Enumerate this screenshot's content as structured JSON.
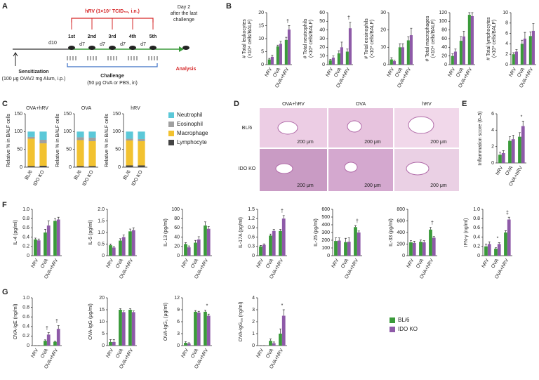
{
  "panels": [
    "A",
    "B",
    "C",
    "D",
    "E",
    "F",
    "G"
  ],
  "diagram": {
    "hrv": "hRV (1×10⁷ TCID₅₀, i.n.)",
    "day2": [
      "Day 2",
      "after the last",
      "challenge"
    ],
    "d10": "d10",
    "doses": [
      "1st",
      "2nd",
      "3rd",
      "4th",
      "5th"
    ],
    "intervals": [
      "d7",
      "d7",
      "d7",
      "d7"
    ],
    "sensitization": "Sensitization",
    "sensitization_detail": "(100 μg OVA/2 mg Alum, i.p.)",
    "challenge": "Challenge",
    "challenge_detail": "(50 μg OVA or PBS, in)",
    "analysis": "Analysis"
  },
  "histology": {
    "columns": [
      "OVA+hRV",
      "OVA",
      "hRV"
    ],
    "rows": [
      "BL/6",
      "IDO KO"
    ],
    "scale_bars": [
      "200 μm",
      "200 μm",
      "200 μm",
      "200 μm",
      "200 μm",
      "200 μm"
    ]
  },
  "chart_data": [
    {
      "type": "bar",
      "ylabel": [
        "# Total leukocytes",
        "(×10⁴ cells/BALF)"
      ],
      "categories": [
        "hRV",
        "OVA",
        "OVA+hRV"
      ],
      "series": [
        {
          "color": "#3a9a3a",
          "values": [
            2,
            7,
            9.5
          ],
          "errors": [
            0.4,
            0.5,
            1
          ]
        },
        {
          "color": "#8e5aa8",
          "values": [
            3,
            8,
            13.5
          ],
          "errors": [
            0.7,
            1,
            1.5
          ]
        }
      ],
      "ylim": [
        0,
        20
      ],
      "yticks": [
        0,
        5,
        10,
        15,
        20
      ],
      "annotations": [
        {
          "category": "OVA+hRV",
          "text": "†"
        }
      ]
    },
    {
      "type": "bar",
      "ylabel": [
        "# Total neutrophils",
        "(×10³ cells/BALF)"
      ],
      "categories": [
        "hRV",
        "OVA",
        "OVA+hRV"
      ],
      "series": [
        {
          "color": "#3a9a3a",
          "values": [
            5,
            13,
            15
          ],
          "errors": [
            1,
            3,
            3
          ]
        },
        {
          "color": "#8e5aa8",
          "values": [
            8,
            20,
            42
          ],
          "errors": [
            2,
            6,
            7
          ]
        }
      ],
      "ylim": [
        0,
        60
      ],
      "yticks": [
        0,
        10,
        20,
        30,
        40,
        50,
        60
      ],
      "annotations": [
        {
          "category": "OVA+hRV",
          "text": "†"
        }
      ]
    },
    {
      "type": "bar",
      "ylabel": [
        "# Total eosinophils",
        "(×10³ cells/BALF)"
      ],
      "categories": [
        "hRV",
        "OVA",
        "OVA+hRV"
      ],
      "series": [
        {
          "color": "#3a9a3a",
          "values": [
            3,
            10,
            14
          ],
          "errors": [
            1,
            2,
            2
          ]
        },
        {
          "color": "#8e5aa8",
          "values": [
            2,
            10,
            17
          ],
          "errors": [
            0.5,
            2,
            4
          ]
        }
      ],
      "ylim": [
        0,
        30
      ],
      "yticks": [
        0,
        10,
        20,
        30
      ],
      "annotations": []
    },
    {
      "type": "bar",
      "ylabel": [
        "# Total macrophages",
        "(×10⁴ cells/BALF)"
      ],
      "categories": [
        "hRV",
        "OVA",
        "OVA+hRV"
      ],
      "series": [
        {
          "color": "#3a9a3a",
          "values": [
            20,
            55,
            115
          ],
          "errors": [
            5,
            10,
            5
          ]
        },
        {
          "color": "#8e5aa8",
          "values": [
            30,
            65,
            112
          ],
          "errors": [
            6,
            12,
            8
          ]
        }
      ],
      "ylim": [
        0,
        120
      ],
      "yticks": [
        0,
        20,
        40,
        60,
        80,
        100,
        120
      ],
      "annotations": []
    },
    {
      "type": "bar",
      "ylabel": [
        "# Total lymphocytes",
        "(×10³ cells/BALF)"
      ],
      "categories": [
        "hRV",
        "OVA",
        "OVA+hRV"
      ],
      "series": [
        {
          "color": "#3a9a3a",
          "values": [
            2,
            4,
            5.5
          ],
          "errors": [
            0.3,
            0.7,
            0.8
          ]
        },
        {
          "color": "#8e5aa8",
          "values": [
            2.5,
            5,
            6.5
          ],
          "errors": [
            0.4,
            1.2,
            1.4
          ]
        }
      ],
      "ylim": [
        0,
        10
      ],
      "yticks": [
        0,
        2,
        4,
        6,
        8,
        10
      ],
      "annotations": []
    },
    {
      "type": "stacked",
      "title": "OVA+hRV",
      "ylabel": [
        "Relative % in BALF cells"
      ],
      "categories": [
        "BL/6",
        "IDO KO"
      ],
      "series": [
        {
          "name": "Lymphocyte",
          "color": "#444444",
          "values": [
            3,
            4
          ]
        },
        {
          "name": "Macrophage",
          "color": "#f2c230",
          "values": [
            77,
            63
          ]
        },
        {
          "name": "Eosinophil",
          "color": "#a0a0a0",
          "values": [
            5,
            10
          ]
        },
        {
          "name": "Neutrophil",
          "color": "#5bc8d8",
          "values": [
            15,
            23
          ]
        }
      ],
      "ylim": [
        0,
        150
      ],
      "yticks": [
        0,
        50,
        100,
        150
      ]
    },
    {
      "type": "stacked",
      "title": "OVA",
      "ylabel": [
        "Relative % in BALF cells"
      ],
      "categories": [
        "BL/6",
        "IDO KO"
      ],
      "series": [
        {
          "color": "#444444",
          "values": [
            3,
            3
          ]
        },
        {
          "color": "#f2c230",
          "values": [
            73,
            70
          ]
        },
        {
          "color": "#a0a0a0",
          "values": [
            8,
            10
          ]
        },
        {
          "color": "#5bc8d8",
          "values": [
            16,
            17
          ]
        }
      ],
      "ylim": [
        0,
        150
      ],
      "yticks": [
        0,
        50,
        100,
        150
      ]
    },
    {
      "type": "stacked",
      "title": "hRV",
      "ylabel": [
        "Relative % in BALF cells"
      ],
      "categories": [
        "BL/6",
        "IDO KO"
      ],
      "series": [
        {
          "color": "#444444",
          "values": [
            5,
            5
          ]
        },
        {
          "color": "#f2c230",
          "values": [
            70,
            68
          ]
        },
        {
          "color": "#a0a0a0",
          "values": [
            5,
            6
          ]
        },
        {
          "color": "#5bc8d8",
          "values": [
            20,
            21
          ]
        }
      ],
      "ylim": [
        0,
        150
      ],
      "yticks": [
        0,
        50,
        100,
        150
      ]
    },
    {
      "type": "bar",
      "ylabel": [
        "Inflammation score (0–5)"
      ],
      "categories": [
        "hRV",
        "OVA",
        "OVA+hRV"
      ],
      "series": [
        {
          "color": "#3a9a3a",
          "values": [
            1,
            2.7,
            3.2
          ],
          "errors": [
            0.3,
            0.5,
            0.5
          ]
        },
        {
          "color": "#8e5aa8",
          "values": [
            1.2,
            2.9,
            4.5
          ],
          "errors": [
            0.3,
            0.5,
            0.6
          ]
        }
      ],
      "ylim": [
        0,
        6
      ],
      "yticks": [
        0,
        2,
        4,
        6
      ],
      "annotations": [
        {
          "category": "OVA+hRV",
          "text": "*"
        }
      ]
    },
    {
      "type": "bar",
      "ylabel": [
        "IL-4 (pg/ml)"
      ],
      "categories": [
        "hRV",
        "OVA",
        "OVA+hRV"
      ],
      "series": [
        {
          "color": "#3a9a3a",
          "values": [
            0.35,
            0.5,
            0.75
          ],
          "errors": [
            0.03,
            0.07,
            0.05
          ]
        },
        {
          "color": "#8e5aa8",
          "values": [
            0.33,
            0.65,
            0.78
          ],
          "errors": [
            0.03,
            0.1,
            0.05
          ]
        }
      ],
      "ylim": [
        0,
        1
      ],
      "yticks": [
        0,
        0.2,
        0.4,
        0.6,
        0.8,
        {
          "value": 1,
          "label": "1.0"
        }
      ],
      "annotations": []
    },
    {
      "type": "bar",
      "ylabel": [
        "IL-5 (pg/ml)"
      ],
      "categories": [
        "hRV",
        "OVA",
        "OVA+hRV"
      ],
      "series": [
        {
          "color": "#3a9a3a",
          "values": [
            0.45,
            0.65,
            1.05
          ],
          "errors": [
            0.05,
            0.08,
            0.1
          ]
        },
        {
          "color": "#8e5aa8",
          "values": [
            0.35,
            0.8,
            1.1
          ],
          "errors": [
            0.04,
            0.1,
            0.1
          ]
        }
      ],
      "ylim": [
        0,
        2
      ],
      "yticks": [
        0,
        0.5,
        {
          "value": 1,
          "label": "1.0"
        },
        1.5,
        {
          "value": 2,
          "label": "2.0"
        }
      ],
      "annotations": []
    },
    {
      "type": "bar",
      "ylabel": [
        "IL-13 (pg/ml)"
      ],
      "categories": [
        "hRV",
        "OVA",
        "OVA+hRV"
      ],
      "series": [
        {
          "color": "#3a9a3a",
          "values": [
            25,
            28,
            65
          ],
          "errors": [
            3,
            5,
            8
          ]
        },
        {
          "color": "#8e5aa8",
          "values": [
            18,
            35,
            58
          ],
          "errors": [
            3,
            6,
            5
          ]
        }
      ],
      "ylim": [
        0,
        100
      ],
      "yticks": [
        0,
        20,
        40,
        60,
        80,
        100
      ],
      "annotations": []
    },
    {
      "type": "bar",
      "ylabel": [
        "IL-17A (pg/ml)"
      ],
      "categories": [
        "hRV",
        "OVA",
        "OVA+hRV"
      ],
      "series": [
        {
          "color": "#3a9a3a",
          "values": [
            0.3,
            0.65,
            0.8
          ],
          "errors": [
            0.03,
            0.05,
            0.05
          ]
        },
        {
          "color": "#8e5aa8",
          "values": [
            0.35,
            0.8,
            1.2
          ],
          "errors": [
            0.03,
            0.05,
            0.1
          ]
        }
      ],
      "ylim": [
        0,
        1.5
      ],
      "yticks": [
        0,
        0.3,
        0.6,
        0.9,
        1.2,
        1.5
      ],
      "annotations": [
        {
          "category": "OVA+hRV",
          "text": "†"
        }
      ]
    },
    {
      "type": "bar",
      "ylabel": [
        "IL-25 (pg/ml)"
      ],
      "categories": [
        "hRV",
        "OVA",
        "OVA+hRV"
      ],
      "series": [
        {
          "color": "#3a9a3a",
          "values": [
            190,
            175,
            370
          ],
          "errors": [
            40,
            50,
            20
          ]
        },
        {
          "color": "#8e5aa8",
          "values": [
            195,
            180,
            300
          ],
          "errors": [
            35,
            50,
            20
          ]
        }
      ],
      "ylim": [
        0,
        600
      ],
      "yticks": [
        0,
        100,
        200,
        300,
        400,
        500,
        600
      ],
      "annotations": [
        {
          "category": "OVA+hRV",
          "text": "†"
        }
      ]
    },
    {
      "type": "bar",
      "ylabel": [
        "IL-33 (pg/ml)"
      ],
      "categories": [
        "hRV",
        "OVA",
        "OVA+hRV"
      ],
      "series": [
        {
          "color": "#3a9a3a",
          "values": [
            230,
            240,
            450
          ],
          "errors": [
            30,
            30,
            40
          ]
        },
        {
          "color": "#8e5aa8",
          "values": [
            220,
            230,
            310
          ],
          "errors": [
            30,
            30,
            20
          ]
        }
      ],
      "ylim": [
        0,
        800
      ],
      "yticks": [
        0,
        200,
        400,
        600,
        800
      ],
      "annotations": [
        {
          "category": "OVA+hRV",
          "text": "†"
        }
      ]
    },
    {
      "type": "bar",
      "ylabel": [
        "IFN-γ (ng/ml)"
      ],
      "categories": [
        "hRV",
        "OVA",
        "OVA+hRV"
      ],
      "series": [
        {
          "color": "#3a9a3a",
          "values": [
            0.2,
            0.15,
            0.5
          ],
          "errors": [
            0.05,
            0.02,
            0.04
          ]
        },
        {
          "color": "#8e5aa8",
          "values": [
            0.25,
            0.25,
            0.78
          ],
          "errors": [
            0.05,
            0.03,
            0.05
          ]
        }
      ],
      "ylim": [
        0,
        1
      ],
      "yticks": [
        0,
        0.2,
        0.4,
        0.6,
        0.8,
        {
          "value": 1,
          "label": "1.0"
        }
      ],
      "annotations": [
        {
          "category": "OVA",
          "text": "*"
        },
        {
          "category": "OVA+hRV",
          "text": "‡"
        }
      ]
    },
    {
      "type": "bar",
      "ylabel": [
        "OVA-IgE (ng/ml)"
      ],
      "categories": [
        "hRV",
        "OVA",
        "OVA+hRV"
      ],
      "series": [
        {
          "color": "#3a9a3a",
          "values": [
            0,
            0.1,
            0.08
          ],
          "errors": [
            0,
            0.02,
            0.01
          ]
        },
        {
          "color": "#8e5aa8",
          "values": [
            0,
            0.23,
            0.35
          ],
          "errors": [
            0,
            0.04,
            0.07
          ]
        }
      ],
      "ylim": [
        0,
        1
      ],
      "yticks": [
        0,
        0.2,
        0.4,
        0.6,
        0.8,
        {
          "value": 1,
          "label": "1.0"
        }
      ],
      "annotations": [
        {
          "category": "OVA",
          "text": "†"
        },
        {
          "category": "OVA+hRV",
          "text": "†"
        }
      ]
    },
    {
      "type": "bar",
      "ylabel": [
        "OVA-IgG (μg/ml)"
      ],
      "categories": [
        "hRV",
        "OVA",
        "OVA+hRV"
      ],
      "series": [
        {
          "color": "#3a9a3a",
          "values": [
            1.5,
            15,
            15
          ],
          "errors": [
            1,
            0.5,
            0.5
          ]
        },
        {
          "color": "#8e5aa8",
          "values": [
            1.5,
            14,
            14
          ],
          "errors": [
            1,
            0.5,
            0.5
          ]
        }
      ],
      "ylim": [
        0,
        20
      ],
      "yticks": [
        0,
        5,
        10,
        15,
        20
      ],
      "annotations": []
    },
    {
      "type": "bar",
      "ylabel": [
        "OVA-IgG₁ (μg/ml)"
      ],
      "categories": [
        "hRV",
        "OVA",
        "OVA+hRV"
      ],
      "series": [
        {
          "color": "#3a9a3a",
          "values": [
            0.7,
            8.5,
            8.5
          ],
          "errors": [
            0.3,
            0.3,
            0.4
          ]
        },
        {
          "color": "#8e5aa8",
          "values": [
            0.5,
            8.3,
            7.5
          ],
          "errors": [
            0.2,
            0.3,
            0.4
          ]
        }
      ],
      "ylim": [
        0,
        12
      ],
      "yticks": [
        0,
        3,
        6,
        9,
        12
      ],
      "annotations": [
        {
          "category": "OVA+hRV",
          "text": "*"
        }
      ]
    },
    {
      "type": "bar",
      "ylabel": [
        "OVA-IgG₂ₐ (ng/ml)"
      ],
      "categories": [
        "hRV",
        "OVA",
        "OVA+hRV"
      ],
      "series": [
        {
          "name": "BL/6",
          "color": "#3a9a3a",
          "values": [
            0,
            0.4,
            1
          ],
          "errors": [
            0,
            0.15,
            0.4
          ]
        },
        {
          "name": "IDO KO",
          "color": "#8e5aa8",
          "values": [
            0,
            0.2,
            2.5
          ],
          "errors": [
            0,
            0.1,
            0.5
          ]
        }
      ],
      "ylim": [
        0,
        4
      ],
      "yticks": [
        0,
        1,
        2,
        3,
        4
      ],
      "annotations": [
        {
          "category": "OVA+hRV",
          "text": "*"
        }
      ]
    }
  ]
}
